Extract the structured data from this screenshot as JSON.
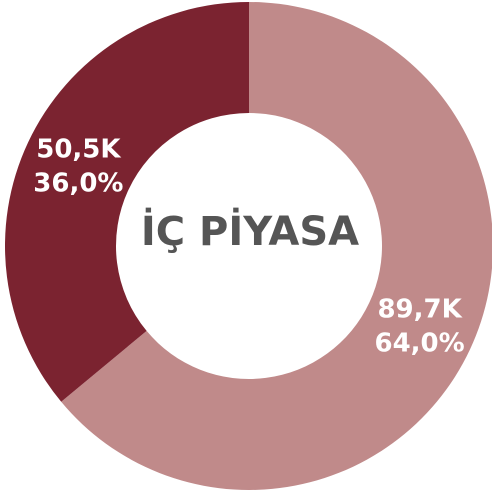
{
  "chart_data": {
    "type": "donut",
    "title": "İÇ PİYASA",
    "categories": [
      null,
      null
    ],
    "values": [
      89700,
      50500
    ],
    "value_labels": [
      "89,7K",
      "50,5K"
    ],
    "percentages": [
      64.0,
      36.0
    ],
    "percent_labels": [
      "64,0%",
      "36,0%"
    ],
    "colors": [
      "#c08a8a",
      "#7b2330"
    ]
  }
}
